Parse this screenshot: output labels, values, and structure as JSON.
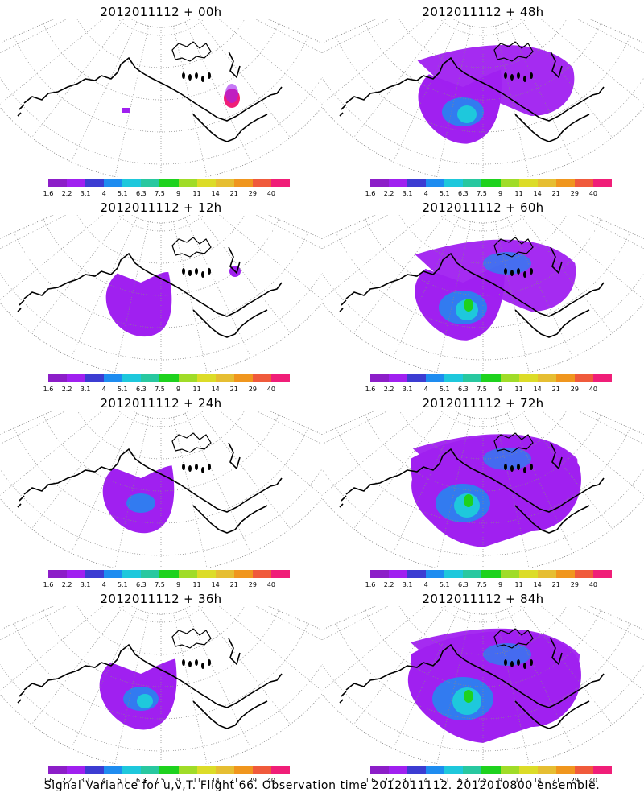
{
  "figure": {
    "caption": "Signal Variance for u,v,T. Flight 66. Observation time 2012011112. 2012010800 ensemble."
  },
  "colorbar": {
    "labels": [
      "1.6",
      "2.2",
      "3.1",
      "4",
      "5.1",
      "6.3",
      "7.5",
      "9",
      "11",
      "14",
      "21",
      "29",
      "40"
    ],
    "colors": [
      "#8c1ec8",
      "#a020f0",
      "#3c3cd2",
      "#1e8cf0",
      "#1ec8dc",
      "#28c8a0",
      "#1ed21e",
      "#a0dc28",
      "#dcdc28",
      "#e6be32",
      "#f0961e",
      "#f05a3c",
      "#f01e78"
    ]
  },
  "panels": [
    {
      "title": "2012011112 + 00h",
      "intensity": 0
    },
    {
      "title": "2012011112 + 12h",
      "intensity": 1
    },
    {
      "title": "2012011112 + 24h",
      "intensity": 2
    },
    {
      "title": "2012011112 + 36h",
      "intensity": 3
    },
    {
      "title": "2012011112 + 48h",
      "intensity": 4
    },
    {
      "title": "2012011112 + 60h",
      "intensity": 5
    },
    {
      "title": "2012011112 + 72h",
      "intensity": 6
    },
    {
      "title": "2012011112 + 84h",
      "intensity": 7
    }
  ]
}
